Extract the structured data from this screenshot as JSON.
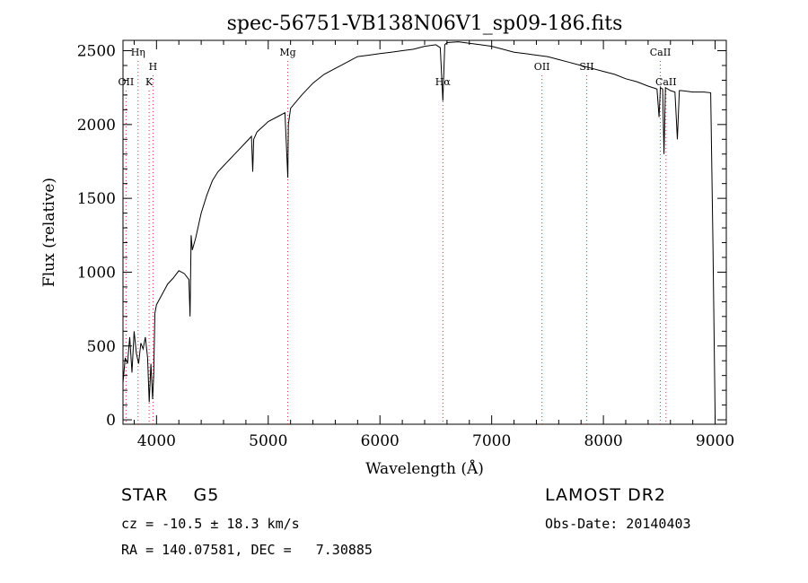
{
  "chart_data": {
    "type": "line",
    "title": "spec-56751-VB138N06V1_sp09-186.fits",
    "xlabel": "Wavelength (Å)",
    "ylabel": "Flux (relative)",
    "xlim": [
      3700,
      9100
    ],
    "ylim": [
      -30,
      2570
    ],
    "xticks": [
      4000,
      5000,
      6000,
      7000,
      8000,
      9000
    ],
    "yticks": [
      0,
      500,
      1000,
      1500,
      2000,
      2500
    ],
    "grid": false,
    "line_color": "#000000",
    "marker_color": "#cc3333",
    "series": [
      {
        "x": [
          3700,
          3720,
          3740,
          3760,
          3780,
          3800,
          3820,
          3840,
          3860,
          3880,
          3900,
          3920,
          3935,
          3950,
          3965,
          3975,
          3985,
          4000,
          4050,
          4100,
          4150,
          4200,
          4250,
          4290,
          4300,
          4310,
          4320,
          4350,
          4400,
          4450,
          4500,
          4550,
          4600,
          4700,
          4800,
          4850,
          4861,
          4870,
          4900,
          5000,
          5100,
          5150,
          5175,
          5180,
          5200,
          5300,
          5400,
          5500,
          5600,
          5700,
          5800,
          5900,
          6000,
          6100,
          6200,
          6300,
          6400,
          6500,
          6540,
          6563,
          6580,
          6600,
          6700,
          6800,
          6900,
          7000,
          7100,
          7200,
          7300,
          7400,
          7500,
          7600,
          7700,
          7800,
          7900,
          8000,
          8100,
          8200,
          8300,
          8400,
          8480,
          8498,
          8510,
          8530,
          8542,
          8555,
          8600,
          8640,
          8662,
          8680,
          8700,
          8800,
          8900,
          8960,
          8980,
          9000
        ],
        "y": [
          250,
          420,
          380,
          560,
          320,
          600,
          450,
          380,
          520,
          480,
          560,
          420,
          120,
          380,
          140,
          300,
          720,
          780,
          850,
          920,
          960,
          1010,
          990,
          950,
          700,
          1250,
          1150,
          1230,
          1400,
          1520,
          1620,
          1680,
          1720,
          1800,
          1880,
          1920,
          1680,
          1900,
          1950,
          2020,
          2060,
          2080,
          1640,
          2000,
          2110,
          2200,
          2280,
          2340,
          2380,
          2420,
          2460,
          2470,
          2480,
          2490,
          2500,
          2510,
          2530,
          2540,
          2520,
          2160,
          2540,
          2555,
          2560,
          2550,
          2540,
          2530,
          2510,
          2490,
          2480,
          2470,
          2460,
          2440,
          2420,
          2400,
          2380,
          2360,
          2340,
          2310,
          2290,
          2260,
          2240,
          2050,
          2250,
          2240,
          1800,
          2250,
          2230,
          2220,
          1900,
          2230,
          2230,
          2220,
          2220,
          2215,
          1200,
          0
        ]
      }
    ],
    "line_markers": [
      {
        "name": "OII",
        "x": 3727,
        "label_pos": "lower"
      },
      {
        "name": "Hη",
        "x": 3835,
        "label_pos": "upper"
      },
      {
        "name": "K",
        "x": 3934,
        "label_pos": "lower"
      },
      {
        "name": "H",
        "x": 3969,
        "label_pos": "middle"
      },
      {
        "name": "Mg",
        "x": 5175,
        "label_pos": "upper"
      },
      {
        "name": "Hα",
        "x": 6563,
        "label_pos": "lower"
      },
      {
        "name": "OII",
        "x": 7450,
        "label_pos": "middle"
      },
      {
        "name": "SII",
        "x": 7850,
        "label_pos": "middle"
      },
      {
        "name": "CaII",
        "x": 8510,
        "label_pos": "upper"
      },
      {
        "name": "CaII",
        "x": 8560,
        "label_pos": "lower"
      }
    ]
  },
  "info": {
    "class_line": "STAR    G5",
    "survey": "LAMOST DR2",
    "cz_line": "cz = -10.5 ± 18.3 km/s",
    "obs_date": "Obs-Date: 20140403",
    "radec_line": "RA = 140.07581, DEC =   7.30885"
  }
}
